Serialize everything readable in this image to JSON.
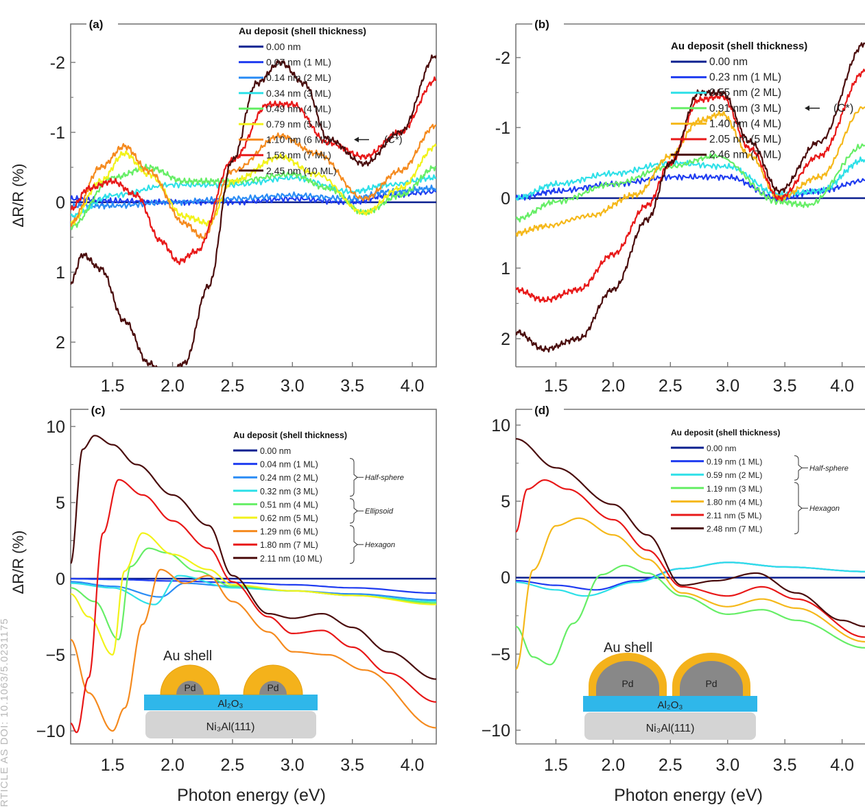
{
  "figure_label": {
    "watermark": "RTICLE AS DOI: 10.1063/5.0231175"
  },
  "chart_data": [
    {
      "panel": "(a)",
      "type": "line",
      "ylabel": "ΔR/R (%)",
      "xlabel": "",
      "xlim": [
        1.15,
        4.2
      ],
      "ylim": [
        -2.1,
        2.5
      ],
      "xticks": [
        "1.5",
        "2.0",
        "2.5",
        "3.0",
        "3.5",
        "4.0"
      ],
      "yticks": [
        "-2",
        "-1",
        "0",
        "1",
        "2"
      ],
      "legend_title": "Au deposit (shell thickness)",
      "legend_position": "top-right",
      "annotation": "(C*)",
      "annotation_series": 6,
      "series": [
        {
          "name": "0.00 nm",
          "color": "#0a1f8f",
          "x": [
            1.15,
            4.2
          ],
          "y": [
            0,
            0
          ]
        },
        {
          "name": "0.07 nm (1 ML)",
          "color": "#1f3cf0",
          "x": [
            1.15,
            1.5,
            2.0,
            2.5,
            3.0,
            3.5,
            3.8,
            4.2
          ],
          "y": [
            -0.05,
            -0.02,
            0.0,
            0.0,
            -0.05,
            0.0,
            -0.1,
            -0.15
          ]
        },
        {
          "name": "0.14 nm (2 ML)",
          "color": "#2a8cf5",
          "x": [
            1.15,
            1.5,
            2.0,
            2.5,
            3.0,
            3.5,
            3.8,
            4.2
          ],
          "y": [
            0.05,
            0.05,
            0.0,
            -0.05,
            -0.1,
            -0.05,
            -0.15,
            -0.2
          ]
        },
        {
          "name": "0.34 nm (3 ML)",
          "color": "#2ee0e8",
          "x": [
            1.15,
            1.5,
            2.0,
            2.5,
            3.0,
            3.5,
            3.8,
            4.2
          ],
          "y": [
            0.2,
            -0.1,
            -0.25,
            -0.25,
            -0.35,
            -0.15,
            -0.25,
            -0.35
          ]
        },
        {
          "name": "0.49 nm (4 ML)",
          "color": "#66ee66",
          "x": [
            1.15,
            1.5,
            1.8,
            2.1,
            2.5,
            3.0,
            3.3,
            3.6,
            3.9,
            4.2
          ],
          "y": [
            0.35,
            -0.35,
            -0.5,
            -0.3,
            -0.3,
            -0.4,
            -0.2,
            0.15,
            -0.1,
            -0.5
          ]
        },
        {
          "name": "0.79 nm (5 ML)",
          "color": "#f2f21a",
          "x": [
            1.15,
            1.4,
            1.6,
            1.8,
            2.1,
            2.3,
            2.5,
            2.9,
            3.2,
            3.6,
            3.9,
            4.2
          ],
          "y": [
            0.3,
            -0.3,
            -0.7,
            -0.4,
            0.2,
            0.3,
            -0.3,
            -0.65,
            -0.4,
            0.15,
            -0.2,
            -0.8
          ]
        },
        {
          "name": "1.10 nm (6 ML)",
          "color": "#f58a1e",
          "x": [
            1.15,
            1.4,
            1.6,
            1.8,
            2.1,
            2.25,
            2.5,
            2.9,
            3.2,
            3.6,
            3.9,
            4.2
          ],
          "y": [
            0.3,
            -0.5,
            -0.8,
            -0.45,
            0.3,
            0.5,
            -0.45,
            -0.95,
            -0.7,
            -0.05,
            -0.45,
            -1.1
          ]
        },
        {
          "name": "1.53 nm (7 ML)",
          "color": "#e81818",
          "x": [
            1.15,
            1.3,
            1.5,
            1.7,
            1.9,
            2.05,
            2.2,
            2.5,
            2.8,
            3.0,
            3.3,
            3.6,
            3.9,
            4.2
          ],
          "y": [
            0.1,
            -0.2,
            -0.3,
            -0.1,
            0.55,
            0.85,
            0.7,
            -0.6,
            -1.4,
            -1.4,
            -0.85,
            -0.65,
            -1.0,
            -1.75
          ]
        },
        {
          "name": "2.45 nm (10 ML)",
          "color": "#4a0c0c",
          "x": [
            1.15,
            1.25,
            1.4,
            1.6,
            1.8,
            1.95,
            2.1,
            2.3,
            2.5,
            2.7,
            2.9,
            3.1,
            3.3,
            3.6,
            3.9,
            4.2
          ],
          "y": [
            1.15,
            0.75,
            0.95,
            1.7,
            2.3,
            2.5,
            2.3,
            1.2,
            -0.6,
            -1.7,
            -2.0,
            -1.7,
            -0.9,
            -0.55,
            -1.0,
            -2.1
          ]
        }
      ]
    },
    {
      "panel": "(b)",
      "type": "line",
      "ylabel": "",
      "xlabel": "",
      "xlim": [
        1.15,
        4.2
      ],
      "ylim": [
        -2.1,
        2.5
      ],
      "xticks": [
        "1.5",
        "2.0",
        "2.5",
        "3.0",
        "3.5",
        "4.0"
      ],
      "yticks": [
        "-2",
        "-1",
        "0",
        "1",
        "2"
      ],
      "legend_title": "Au deposit (shell thickness)",
      "legend_position": "top-right",
      "annotation": "(C*)",
      "annotation_series": 3,
      "series": [
        {
          "name": "0.00 nm",
          "color": "#0a1f8f",
          "x": [
            1.15,
            4.2
          ],
          "y": [
            0,
            0
          ]
        },
        {
          "name": "0.23 nm (1 ML)",
          "color": "#1f3cf0",
          "x": [
            1.15,
            1.5,
            2.0,
            2.5,
            3.0,
            3.45,
            3.8,
            4.2
          ],
          "y": [
            0.0,
            -0.1,
            -0.2,
            -0.3,
            -0.3,
            0.0,
            -0.1,
            -0.25
          ]
        },
        {
          "name": "0.55 nm (2 ML)",
          "color": "#2ee0e8",
          "x": [
            1.15,
            1.5,
            2.0,
            2.5,
            3.0,
            3.45,
            3.8,
            4.2
          ],
          "y": [
            0.0,
            -0.2,
            -0.35,
            -0.5,
            -0.45,
            -0.05,
            -0.1,
            -0.55
          ]
        },
        {
          "name": "0.91 nm (3 ML)",
          "color": "#66ee66",
          "x": [
            1.15,
            1.5,
            2.0,
            2.5,
            2.9,
            3.45,
            3.7,
            4.2
          ],
          "y": [
            0.3,
            0.05,
            -0.2,
            -0.45,
            -0.6,
            0.05,
            0.1,
            -0.75
          ]
        },
        {
          "name": "1.40 nm (4 ML)",
          "color": "#f5b81a",
          "x": [
            1.15,
            1.4,
            1.8,
            2.2,
            2.5,
            2.75,
            2.95,
            3.2,
            3.45,
            3.8,
            4.2
          ],
          "y": [
            0.5,
            0.4,
            0.25,
            -0.05,
            -0.6,
            -1.1,
            -1.2,
            -0.6,
            0.0,
            -0.3,
            -1.3
          ]
        },
        {
          "name": "2.05 nm (5 ML)",
          "color": "#e81818",
          "x": [
            1.15,
            1.4,
            1.7,
            2.0,
            2.3,
            2.5,
            2.75,
            2.95,
            3.2,
            3.45,
            3.8,
            4.2
          ],
          "y": [
            1.3,
            1.45,
            1.3,
            0.8,
            0.1,
            -0.5,
            -1.4,
            -1.45,
            -0.7,
            0.0,
            -0.6,
            -1.8
          ]
        },
        {
          "name": "2.46 nm (7 ML)",
          "color": "#4a0c0c",
          "x": [
            1.15,
            1.4,
            1.7,
            2.0,
            2.3,
            2.5,
            2.75,
            2.95,
            3.2,
            3.45,
            3.8,
            4.2
          ],
          "y": [
            1.9,
            2.15,
            2.0,
            1.3,
            0.3,
            -0.5,
            -1.5,
            -1.5,
            -0.8,
            -0.1,
            -0.8,
            -2.2
          ]
        }
      ]
    },
    {
      "panel": "(c)",
      "type": "line",
      "ylabel": "ΔR/R (%)",
      "xlabel": "Photon energy (eV)",
      "xlim": [
        1.15,
        4.2
      ],
      "ylim": [
        -11,
        11
      ],
      "xticks": [
        "1.5",
        "2.0",
        "2.5",
        "3.0",
        "3.5",
        "4.0"
      ],
      "yticks": [
        "10",
        "5",
        "0",
        "−5",
        "−10"
      ],
      "legend_title": "Au deposit (shell thickness)",
      "legend_position": "top-right",
      "groups": [
        {
          "label": "Half-sphere",
          "from": 1,
          "to": 3
        },
        {
          "label": "Ellipsoid",
          "from": 4,
          "to": 5
        },
        {
          "label": "Hexagon",
          "from": 6,
          "to": 8
        }
      ],
      "inset": {
        "shell": "Au shell",
        "core": "Pd",
        "layer": "Al₂O₃",
        "substrate": "Ni₃Al(111)",
        "style": "half-sphere"
      },
      "series": [
        {
          "name": "0.00 nm",
          "color": "#0a1f8f",
          "x": [
            1.15,
            4.2
          ],
          "y": [
            0,
            0
          ]
        },
        {
          "name": "0.04 nm (1 ML)",
          "color": "#1f3cf0",
          "x": [
            1.15,
            1.5,
            2.0,
            2.5,
            3.0,
            3.5,
            4.2
          ],
          "y": [
            0.0,
            -0.05,
            -0.15,
            -0.25,
            -0.4,
            -0.6,
            -0.95
          ]
        },
        {
          "name": "0.24 nm (2 ML)",
          "color": "#2a8cf5",
          "x": [
            1.15,
            1.5,
            1.9,
            2.1,
            2.5,
            3.0,
            3.5,
            4.2
          ],
          "y": [
            -0.2,
            -0.5,
            -1.2,
            -0.3,
            -0.5,
            -0.8,
            -1.0,
            -1.4
          ]
        },
        {
          "name": "0.32 nm (3 ML)",
          "color": "#2ee0e8",
          "x": [
            1.15,
            1.5,
            1.85,
            2.05,
            2.5,
            3.0,
            3.5,
            4.2
          ],
          "y": [
            -0.3,
            -0.6,
            -1.7,
            0.2,
            -0.6,
            -0.8,
            -1.1,
            -1.5
          ]
        },
        {
          "name": "0.51 nm (4 ML)",
          "color": "#66ee66",
          "x": [
            1.15,
            1.35,
            1.55,
            1.65,
            1.8,
            1.95,
            2.2,
            2.5,
            3.0,
            3.5,
            4.2
          ],
          "y": [
            -0.6,
            -1.5,
            -4.0,
            0.8,
            2.0,
            1.7,
            0.5,
            -0.5,
            -0.8,
            -1.1,
            -1.6
          ]
        },
        {
          "name": "0.62 nm (5 ML)",
          "color": "#f2f21a",
          "x": [
            1.15,
            1.3,
            1.5,
            1.6,
            1.75,
            2.0,
            2.3,
            2.5,
            3.0,
            3.5,
            4.2
          ],
          "y": [
            -1.0,
            -2.5,
            -5.0,
            0.5,
            3.0,
            1.6,
            0.6,
            -0.4,
            -0.8,
            -1.1,
            -1.7
          ]
        },
        {
          "name": "1.29 nm (6 ML)",
          "color": "#f58a1e",
          "x": [
            1.15,
            1.3,
            1.5,
            1.6,
            1.75,
            1.9,
            2.1,
            2.3,
            2.5,
            2.8,
            3.0,
            3.3,
            3.6,
            4.2
          ],
          "y": [
            -4.0,
            -7.5,
            -10.0,
            -8.5,
            -3.0,
            0.6,
            -0.3,
            0.2,
            -1.5,
            -3.5,
            -4.8,
            -5.0,
            -6.0,
            -9.8
          ]
        },
        {
          "name": "1.80 nm (7 ML)",
          "color": "#e81818",
          "x": [
            1.15,
            1.2,
            1.3,
            1.42,
            1.55,
            1.75,
            2.0,
            2.3,
            2.5,
            2.8,
            3.0,
            3.25,
            3.5,
            3.8,
            4.2
          ],
          "y": [
            -9.5,
            -10.1,
            -6.5,
            3.0,
            6.5,
            5.5,
            3.8,
            2.0,
            -0.2,
            -2.5,
            -3.6,
            -3.4,
            -4.5,
            -6.2,
            -8.1
          ]
        },
        {
          "name": "2.11 nm (10 ML)",
          "color": "#4a0c0c",
          "x": [
            1.15,
            1.25,
            1.35,
            1.5,
            1.7,
            2.0,
            2.3,
            2.5,
            2.8,
            3.0,
            3.25,
            3.5,
            3.8,
            4.2
          ],
          "y": [
            1.0,
            8.5,
            9.4,
            8.8,
            7.5,
            5.5,
            3.5,
            0.2,
            -2.3,
            -2.6,
            -2.3,
            -3.2,
            -4.8,
            -6.6
          ]
        }
      ]
    },
    {
      "panel": "(d)",
      "type": "line",
      "ylabel": "",
      "xlabel": "Photon energy (eV)",
      "xlim": [
        1.15,
        4.2
      ],
      "ylim": [
        -11,
        11
      ],
      "xticks": [
        "1.5",
        "2.0",
        "2.5",
        "3.0",
        "3.5",
        "4.0"
      ],
      "yticks": [
        "10",
        "5",
        "0",
        "−5",
        "−10"
      ],
      "legend_title": "Au deposit (shell thickness)",
      "legend_position": "top-right",
      "groups": [
        {
          "label": "Half-sphere",
          "from": 1,
          "to": 2
        },
        {
          "label": "Hexagon",
          "from": 3,
          "to": 6
        }
      ],
      "inset": {
        "shell": "Au shell",
        "core": "Pd",
        "layer": "Al₂O₃",
        "substrate": "Ni₃Al(111)",
        "style": "hexagon"
      },
      "series": [
        {
          "name": "0.00 nm",
          "color": "#0a1f8f",
          "x": [
            1.15,
            4.2
          ],
          "y": [
            0,
            0
          ]
        },
        {
          "name": "0.19 nm (1 ML)",
          "color": "#1f3cf0",
          "x": [
            1.15,
            1.5,
            1.85,
            2.2,
            2.6,
            3.0,
            3.5,
            4.2
          ],
          "y": [
            -0.2,
            -0.5,
            -0.8,
            -0.2,
            0.6,
            1.0,
            0.7,
            0.4
          ]
        },
        {
          "name": "0.59 nm (2 ML)",
          "color": "#2ee0e8",
          "x": [
            1.15,
            1.5,
            1.75,
            2.2,
            2.6,
            3.0,
            3.5,
            4.2
          ],
          "y": [
            -0.3,
            -0.8,
            -1.2,
            -0.3,
            0.6,
            1.0,
            0.7,
            0.4
          ]
        },
        {
          "name": "1.19 nm (3 ML)",
          "color": "#66ee66",
          "x": [
            1.15,
            1.3,
            1.45,
            1.65,
            1.9,
            2.1,
            2.3,
            2.6,
            3.0,
            3.3,
            3.6,
            4.2
          ],
          "y": [
            -3.2,
            -5.2,
            -5.7,
            -3.0,
            0.2,
            0.8,
            0.3,
            -1.2,
            -2.4,
            -2.1,
            -2.8,
            -4.6
          ]
        },
        {
          "name": "1.80 nm (4 ML)",
          "color": "#f5b81a",
          "x": [
            1.15,
            1.3,
            1.5,
            1.7,
            2.0,
            2.3,
            2.6,
            3.0,
            3.3,
            3.6,
            4.2
          ],
          "y": [
            -6.0,
            0.5,
            3.4,
            3.9,
            2.8,
            1.2,
            -1.0,
            -1.9,
            -1.4,
            -2.0,
            -4.2
          ]
        },
        {
          "name": "2.11 nm (5 ML)",
          "color": "#e81818",
          "x": [
            1.15,
            1.25,
            1.4,
            1.6,
            2.0,
            2.3,
            2.6,
            3.0,
            3.3,
            3.6,
            4.2
          ],
          "y": [
            3.0,
            5.8,
            6.4,
            5.8,
            3.8,
            1.8,
            -0.6,
            -1.2,
            -0.6,
            -1.4,
            -3.9
          ]
        },
        {
          "name": "2.48 nm (7 ML)",
          "color": "#4a0c0c",
          "x": [
            1.15,
            1.5,
            2.0,
            2.3,
            2.6,
            2.9,
            3.25,
            3.6,
            4.0,
            4.2
          ],
          "y": [
            9.1,
            7.2,
            4.8,
            2.8,
            -0.5,
            -0.2,
            0.3,
            -1.0,
            -2.8,
            -3.2
          ]
        }
      ]
    }
  ]
}
